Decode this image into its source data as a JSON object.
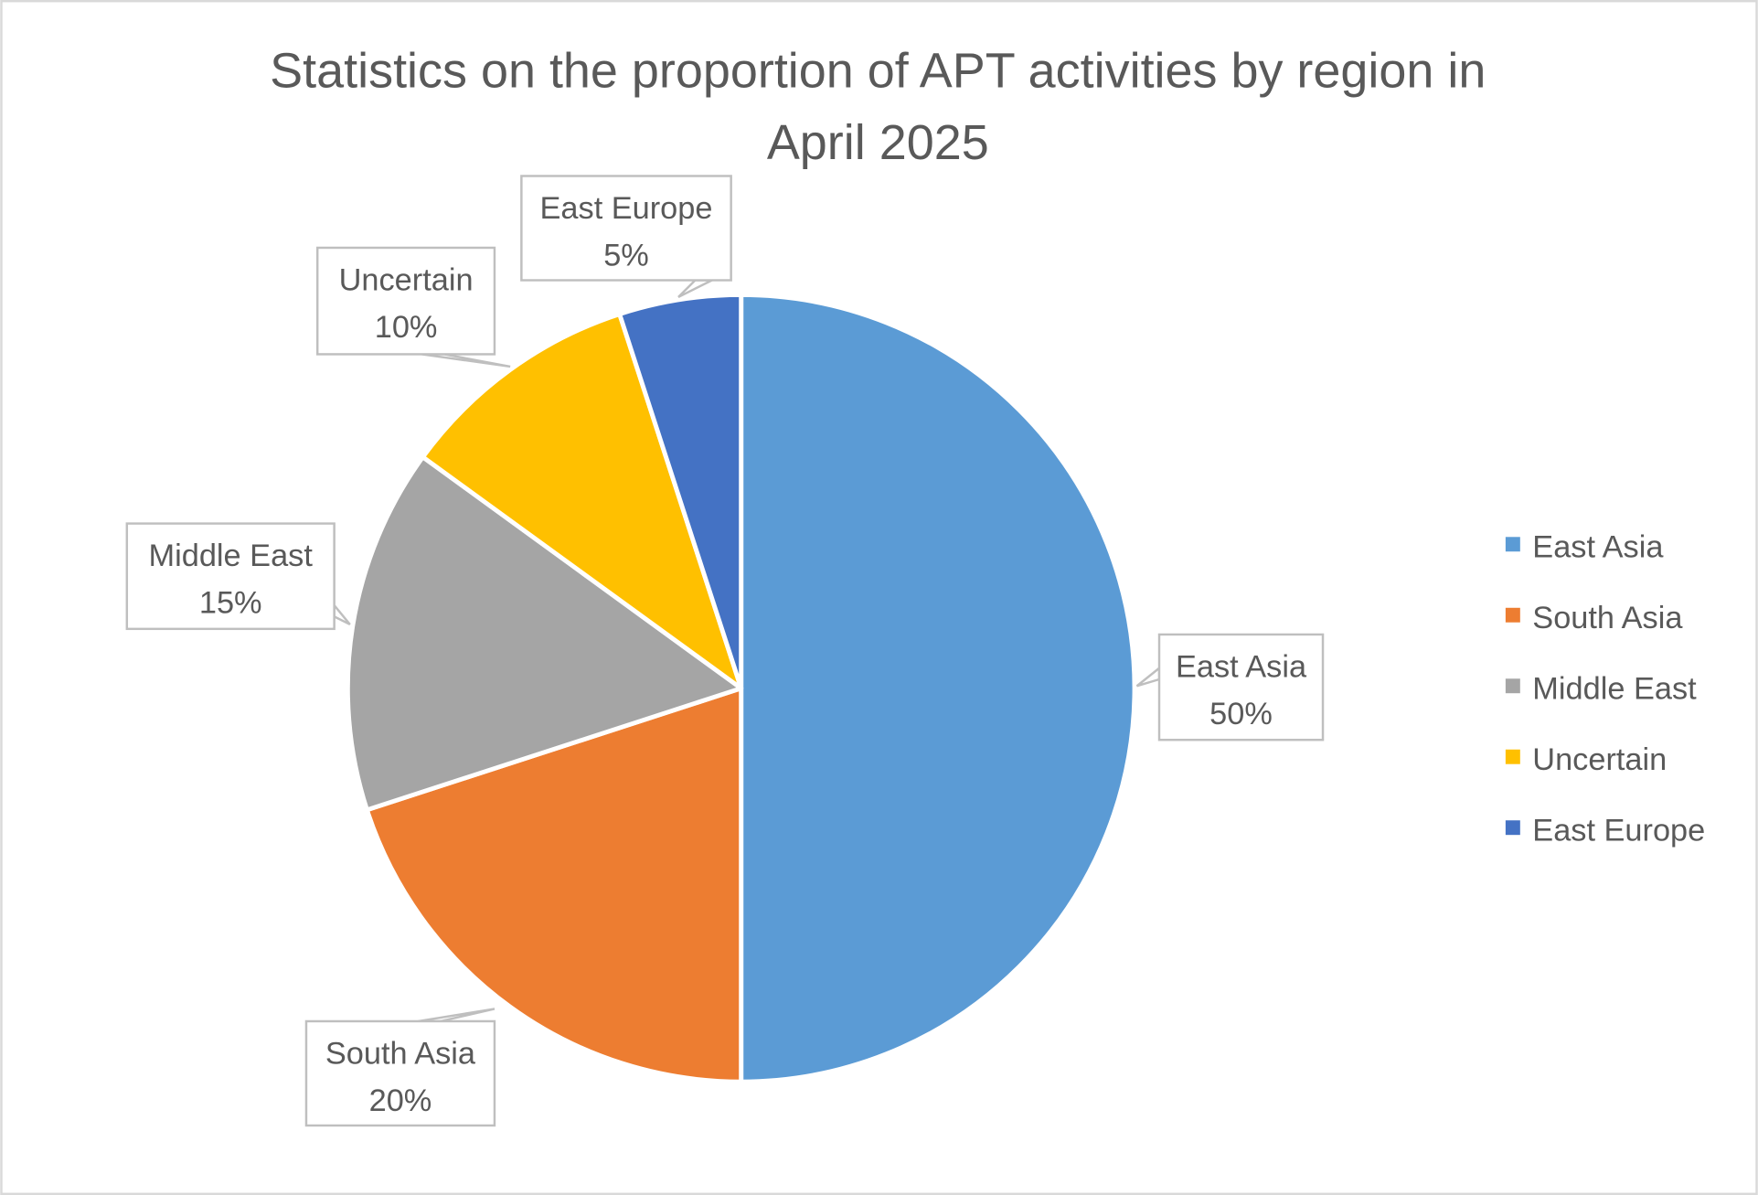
{
  "chart_data": {
    "type": "pie",
    "title": "Statistics on the proportion of APT activities by region in April 2025",
    "title_lines": [
      "Statistics on the proportion of APT activities by region in",
      "April 2025"
    ],
    "categories": [
      "East Asia",
      "South Asia",
      "Middle East",
      "Uncertain",
      "East Europe"
    ],
    "values": [
      50,
      20,
      15,
      10,
      5
    ],
    "data_labels": [
      "50%",
      "20%",
      "15%",
      "10%",
      "5%"
    ],
    "colors": [
      "#5B9BD5",
      "#ED7D31",
      "#A5A5A5",
      "#FFC000",
      "#4472C4"
    ],
    "legend_position": "right",
    "start_angle": "top, clockwise"
  }
}
